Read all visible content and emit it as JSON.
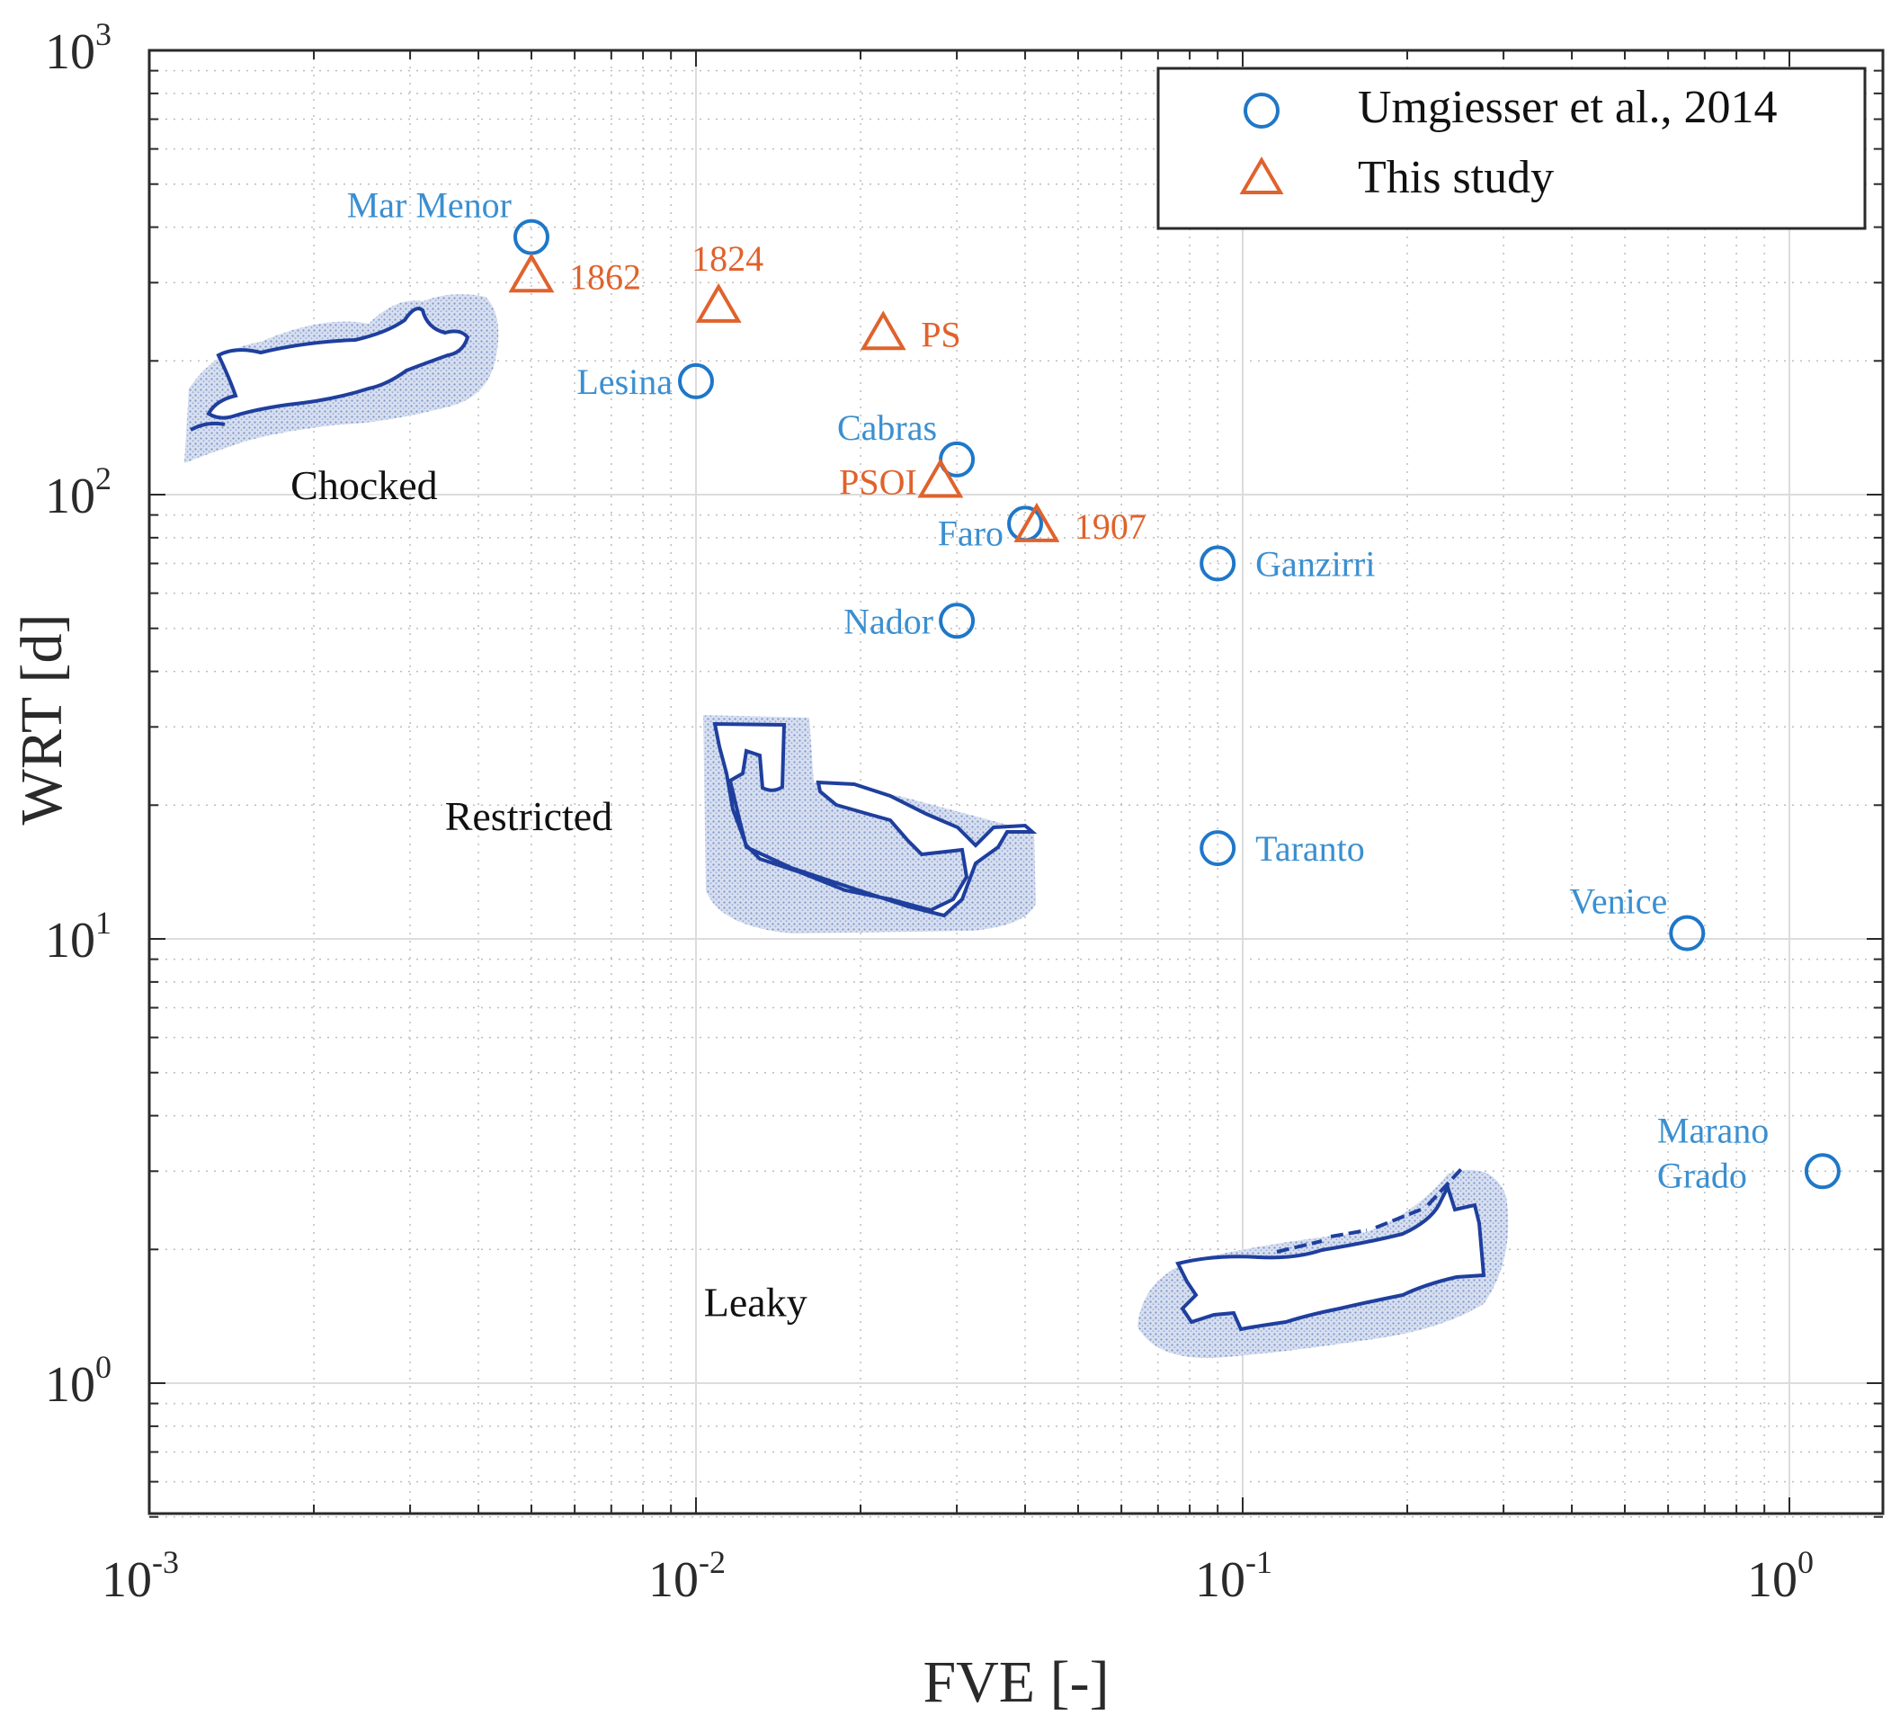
{
  "chart_data": {
    "type": "scatter",
    "xscale": "log",
    "yscale": "log",
    "xlabel": "FVE [-]",
    "ylabel": "WRT [d]",
    "xlim": [
      0.001,
      1.5
    ],
    "ylim": [
      0.5,
      1000
    ],
    "grid": true,
    "legend_position": "top-right",
    "x_ticks": [
      {
        "base": "10",
        "exp": "-3"
      },
      {
        "base": "10",
        "exp": "-2"
      },
      {
        "base": "10",
        "exp": "-1"
      },
      {
        "base": "10",
        "exp": "0"
      }
    ],
    "y_ticks": [
      {
        "base": "10",
        "exp": "0"
      },
      {
        "base": "10",
        "exp": "1"
      },
      {
        "base": "10",
        "exp": "2"
      },
      {
        "base": "10",
        "exp": "3"
      }
    ],
    "series": [
      {
        "name": "Umgiesser et al., 2014",
        "marker": "circle",
        "color": "#1f77c8",
        "label_color": "#3b8fd0",
        "points": [
          {
            "label": "Mar Menor",
            "x": 0.005,
            "y": 380,
            "label_pos": "above-left"
          },
          {
            "label": "Lesina",
            "x": 0.01,
            "y": 180,
            "label_pos": "left"
          },
          {
            "label": "Cabras",
            "x": 0.03,
            "y": 120,
            "label_pos": "above-left"
          },
          {
            "label": "Faro",
            "x": 0.04,
            "y": 86,
            "label_pos": "left-below"
          },
          {
            "label": "Ganzirri",
            "x": 0.09,
            "y": 70,
            "label_pos": "right"
          },
          {
            "label": "Nador",
            "x": 0.03,
            "y": 52,
            "label_pos": "left"
          },
          {
            "label": "Taranto",
            "x": 0.09,
            "y": 16,
            "label_pos": "right"
          },
          {
            "label": "Venice",
            "x": 0.65,
            "y": 10.3,
            "label_pos": "above-left"
          },
          {
            "label": "Marano Grado",
            "x": 1.15,
            "y": 3,
            "label_pos": "left-two-line",
            "label_lines": [
              "Marano",
              "Grado"
            ]
          }
        ]
      },
      {
        "name": "This study",
        "marker": "triangle",
        "color": "#e0622c",
        "label_color": "#e0622c",
        "points": [
          {
            "label": "1862",
            "x": 0.005,
            "y": 310,
            "label_pos": "right"
          },
          {
            "label": "1824",
            "x": 0.011,
            "y": 265,
            "label_pos": "above"
          },
          {
            "label": "PS",
            "x": 0.022,
            "y": 230,
            "label_pos": "right"
          },
          {
            "label": "PSOI",
            "x": 0.028,
            "y": 107,
            "label_pos": "left"
          },
          {
            "label": "1907",
            "x": 0.042,
            "y": 85,
            "label_pos": "right"
          }
        ]
      }
    ],
    "annotations": [
      {
        "text": "Chocked",
        "x": 0.00125,
        "y": 100,
        "shape": "choked"
      },
      {
        "text": "Restricted",
        "x": 0.0025,
        "y": 18,
        "shape": "restricted"
      },
      {
        "text": "Leaky",
        "x": 0.0065,
        "y": 1.45,
        "shape": "leaky"
      }
    ]
  },
  "colors": {
    "blue_marker": "#1f77c8",
    "orange_marker": "#e0622c",
    "lagoon_fill": "#8aa1d0",
    "lagoon_outline": "#1f3f9e"
  }
}
